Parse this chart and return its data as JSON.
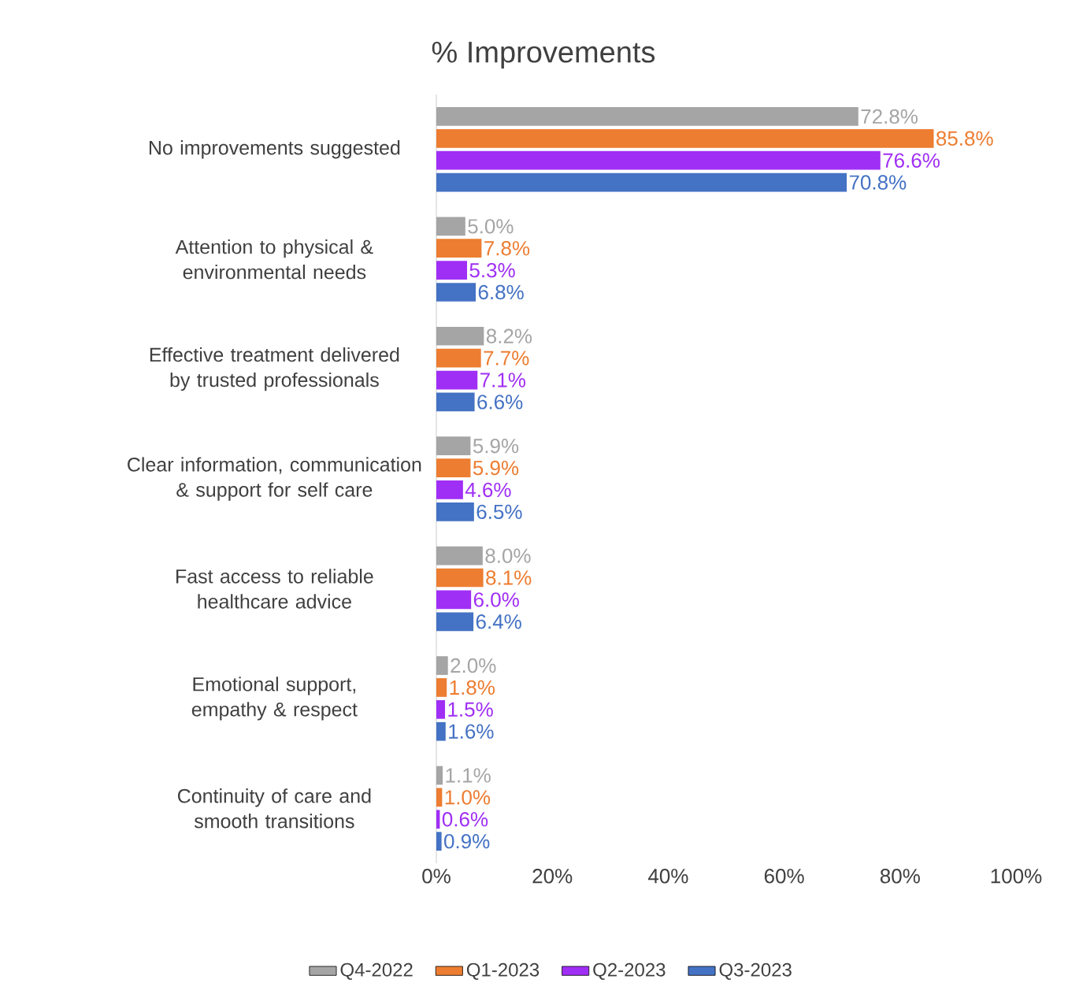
{
  "chart_data": {
    "type": "bar",
    "orientation": "horizontal",
    "title": "% Improvements",
    "categories": [
      "No improvements suggested",
      "Attention to physical & environmental needs",
      "Effective treatment delivered by trusted professionals",
      "Clear information, communication & support for self care",
      "Fast access to reliable healthcare advice",
      "Emotional support, empathy & respect",
      "Continuity of care and smooth transitions"
    ],
    "series": [
      {
        "name": "Q4-2022",
        "color": "#a5a5a5",
        "values": [
          72.8,
          5.0,
          8.2,
          5.9,
          8.0,
          2.0,
          1.1
        ],
        "value_labels": [
          "72.8%",
          "5.0%",
          "8.2%",
          "5.9%",
          "8.0%",
          "2.0%",
          "1.1%"
        ]
      },
      {
        "name": "Q1-2023",
        "color": "#ed7d31",
        "values": [
          85.8,
          7.8,
          7.7,
          5.9,
          8.1,
          1.8,
          1.0
        ],
        "value_labels": [
          "85.8%",
          "7.8%",
          "7.7%",
          "5.9%",
          "8.1%",
          "1.8%",
          "1.0%"
        ]
      },
      {
        "name": "Q2-2023",
        "color": "#a02ff5",
        "values": [
          76.6,
          5.3,
          7.1,
          4.6,
          6.0,
          1.5,
          0.6
        ],
        "value_labels": [
          "76.6%",
          "5.3%",
          "7.1%",
          "4.6%",
          "6.0%",
          "1.5%",
          "0.6%"
        ]
      },
      {
        "name": "Q3-2023",
        "color": "#4472c4",
        "values": [
          70.8,
          6.8,
          6.6,
          6.5,
          6.4,
          1.6,
          0.9
        ],
        "value_labels": [
          "70.8%",
          "6.8%",
          "6.6%",
          "6.5%",
          "6.4%",
          "1.6%",
          "0.9%"
        ]
      }
    ],
    "xlim": [
      0,
      100
    ],
    "xticks": [
      {
        "value": 0,
        "label": "0%"
      },
      {
        "value": 20,
        "label": "20%"
      },
      {
        "value": 40,
        "label": "40%"
      },
      {
        "value": 60,
        "label": "60%"
      },
      {
        "value": 80,
        "label": "80%"
      },
      {
        "value": 100,
        "label": "100%"
      }
    ],
    "grid": false,
    "legend": "bottom"
  }
}
